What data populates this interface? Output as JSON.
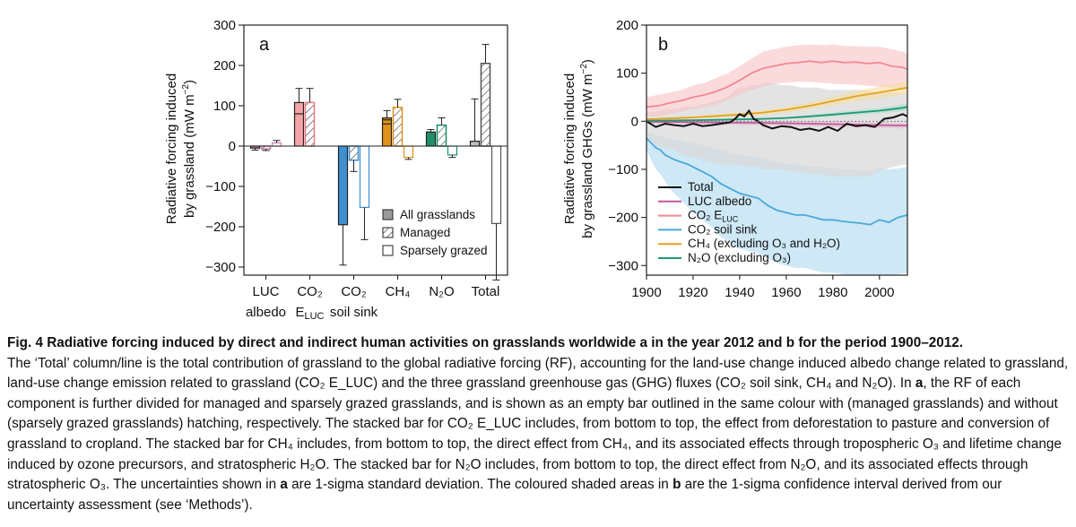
{
  "chart_data": [
    {
      "type": "bar",
      "panel_label": "a",
      "ylabel": "Radiative forcing induced by grassland (mW m⁻²)",
      "ylim": [
        -320,
        300
      ],
      "yticks": [
        -300,
        -200,
        -100,
        0,
        100,
        200,
        300
      ],
      "categories": [
        {
          "line1": "LUC",
          "line2": "albedo"
        },
        {
          "line1": "CO₂",
          "line2": "E_LUC"
        },
        {
          "line1": "CO₂",
          "line2": "soil sink"
        },
        {
          "line1": "CH₄",
          "line2": ""
        },
        {
          "line1": "N₂O",
          "line2": ""
        },
        {
          "line1": "Total",
          "line2": ""
        }
      ],
      "colors": [
        "#c77aa4",
        "#ef7b80",
        "#3f90d0",
        "#e0921a",
        "#1e8f6a",
        "#555555"
      ],
      "series": [
        {
          "name": "All grasslands",
          "values": [
            -5,
            108,
            -195,
            70,
            35,
            12
          ],
          "err": [
            5,
            35,
            100,
            18,
            6,
            105
          ]
        },
        {
          "name": "Managed",
          "values": [
            -7,
            108,
            -35,
            96,
            52,
            205
          ],
          "err": [
            4,
            35,
            28,
            20,
            18,
            47
          ]
        },
        {
          "name": "Sparsely grazed",
          "values": [
            8,
            0,
            -152,
            -28,
            -22,
            -192
          ],
          "err": [
            6,
            0,
            80,
            5,
            6,
            140
          ]
        }
      ],
      "stack_dividers": {
        "CO₂ E_LUC": [
          80
        ],
        "CH₄": [
          55,
          65
        ]
      },
      "legend": [
        "All grasslands",
        "Managed",
        "Sparsely grazed"
      ]
    },
    {
      "type": "line",
      "panel_label": "b",
      "ylabel": "Radiative forcing induced by grassland GHGs (mW m⁻²)",
      "xlim": [
        1900,
        2012
      ],
      "ylim": [
        -320,
        200
      ],
      "xticks": [
        1900,
        1920,
        1940,
        1960,
        1980,
        2000
      ],
      "yticks": [
        -300,
        -200,
        -100,
        0,
        100,
        200
      ],
      "series": [
        {
          "name": "Total",
          "color": "#111111",
          "x": [
            1900,
            1904,
            1908,
            1912,
            1916,
            1920,
            1924,
            1928,
            1932,
            1936,
            1938,
            1940,
            1942,
            1944,
            1946,
            1948,
            1950,
            1954,
            1958,
            1962,
            1966,
            1970,
            1974,
            1978,
            1982,
            1986,
            1990,
            1994,
            1998,
            2002,
            2006,
            2010,
            2012
          ],
          "y": [
            0,
            -12,
            -5,
            -8,
            -10,
            -5,
            -10,
            -8,
            -5,
            -2,
            5,
            15,
            10,
            22,
            5,
            0,
            -8,
            -15,
            -10,
            -12,
            -18,
            -15,
            -20,
            -12,
            -20,
            -5,
            -10,
            -8,
            -12,
            5,
            8,
            15,
            10
          ],
          "lo": [
            -30,
            -50,
            -55,
            -60,
            -70,
            -75,
            -80,
            -85,
            -90,
            -90,
            -90,
            -90,
            -95,
            -95,
            -95,
            -95,
            -100,
            -100,
            -100,
            -105,
            -105,
            -110,
            -110,
            -115,
            -115,
            -115,
            -115,
            -115,
            -110,
            -100,
            -95,
            -90,
            -90
          ],
          "hi": [
            20,
            20,
            25,
            25,
            30,
            30,
            35,
            40,
            45,
            55,
            65,
            70,
            70,
            75,
            75,
            75,
            80,
            80,
            75,
            75,
            70,
            70,
            70,
            65,
            65,
            65,
            65,
            65,
            60,
            60,
            60,
            60,
            60
          ]
        },
        {
          "name": "LUC albedo",
          "color": "#c05a9a",
          "x": [
            1900,
            1920,
            1940,
            1960,
            1980,
            2000,
            2012
          ],
          "y": [
            -1,
            -2,
            -3,
            -4,
            -6,
            -8,
            -9
          ],
          "lo": [
            -5,
            -6,
            -8,
            -9,
            -12,
            -14,
            -15
          ],
          "hi": [
            2,
            2,
            1,
            0,
            0,
            -2,
            -3
          ]
        },
        {
          "name": "CO₂ E_LUC",
          "color": "#f08a90",
          "x": [
            1900,
            1905,
            1910,
            1915,
            1920,
            1925,
            1930,
            1935,
            1940,
            1945,
            1950,
            1955,
            1960,
            1965,
            1970,
            1975,
            1980,
            1985,
            1990,
            1995,
            2000,
            2005,
            2010,
            2012
          ],
          "y": [
            30,
            32,
            38,
            43,
            50,
            55,
            62,
            72,
            85,
            100,
            110,
            115,
            120,
            122,
            125,
            122,
            125,
            122,
            123,
            120,
            122,
            115,
            112,
            108
          ],
          "lo": [
            10,
            10,
            15,
            20,
            25,
            30,
            35,
            45,
            55,
            65,
            72,
            78,
            80,
            82,
            82,
            80,
            78,
            77,
            76,
            74,
            72,
            70,
            68,
            66
          ],
          "hi": [
            50,
            55,
            60,
            65,
            75,
            80,
            90,
            100,
            115,
            130,
            145,
            150,
            155,
            158,
            160,
            158,
            160,
            157,
            156,
            155,
            155,
            150,
            145,
            140
          ]
        },
        {
          "name": "CO₂ soil sink",
          "color": "#4aa8d8",
          "x": [
            1900,
            1902,
            1904,
            1906,
            1908,
            1910,
            1912,
            1915,
            1918,
            1920,
            1924,
            1928,
            1932,
            1936,
            1940,
            1944,
            1948,
            1952,
            1956,
            1960,
            1964,
            1968,
            1972,
            1976,
            1980,
            1984,
            1988,
            1992,
            1996,
            1998,
            2000,
            2004,
            2008,
            2012
          ],
          "y": [
            -35,
            -45,
            -55,
            -60,
            -70,
            -75,
            -80,
            -85,
            -90,
            -95,
            -105,
            -115,
            -130,
            -140,
            -150,
            -155,
            -160,
            -175,
            -185,
            -190,
            -195,
            -195,
            -200,
            -205,
            -205,
            -208,
            -210,
            -212,
            -215,
            -210,
            -205,
            -210,
            -200,
            -195
          ],
          "lo": [
            -60,
            -80,
            -100,
            -110,
            -125,
            -140,
            -150,
            -165,
            -180,
            -190,
            -205,
            -220,
            -240,
            -255,
            -265,
            -270,
            -275,
            -285,
            -295,
            -300,
            -305,
            -305,
            -310,
            -315,
            -315,
            -318,
            -320,
            -320,
            -320,
            -320,
            -320,
            -320,
            -318,
            -315
          ],
          "hi": [
            -20,
            -25,
            -30,
            -30,
            -35,
            -35,
            -40,
            -40,
            -45,
            -45,
            -50,
            -55,
            -60,
            -65,
            -70,
            -72,
            -75,
            -80,
            -85,
            -88,
            -90,
            -92,
            -95,
            -95,
            -98,
            -100,
            -100,
            -102,
            -102,
            -100,
            -98,
            -100,
            -98,
            -95
          ]
        },
        {
          "name": "CH₄ (excluding O₃ and H₂O)",
          "color": "#e2a21e",
          "x": [
            1900,
            1920,
            1940,
            1950,
            1960,
            1970,
            1980,
            1990,
            2000,
            2010,
            2012
          ],
          "y": [
            4,
            8,
            14,
            18,
            24,
            32,
            42,
            52,
            60,
            68,
            70
          ],
          "lo": [
            2,
            5,
            10,
            13,
            18,
            25,
            33,
            41,
            48,
            55,
            57
          ],
          "hi": [
            6,
            11,
            18,
            23,
            30,
            39,
            51,
            63,
            72,
            81,
            83
          ]
        },
        {
          "name": "N₂O (excluding O₃)",
          "color": "#1a9a74",
          "x": [
            1900,
            1920,
            1940,
            1950,
            1960,
            1970,
            1980,
            1990,
            2000,
            2010,
            2012
          ],
          "y": [
            1,
            2,
            4,
            5,
            7,
            10,
            14,
            18,
            22,
            28,
            30
          ],
          "lo": [
            0,
            1,
            2,
            3,
            5,
            7,
            10,
            13,
            17,
            21,
            23
          ],
          "hi": [
            2,
            3,
            6,
            7,
            9,
            13,
            18,
            23,
            27,
            35,
            37
          ]
        }
      ],
      "legend": [
        "Total",
        "LUC albedo",
        "CO₂ E_LUC",
        "CO₂ soil sink",
        "CH₄ (excluding O₃ and H₂O)",
        "N₂O (excluding O₃)"
      ]
    }
  ],
  "caption": {
    "title": "Fig. 4 Radiative forcing induced by direct and indirect human activities on grasslands worldwide a in the year 2012 and b for the period 1900–2012.",
    "paragraph_1": "The ‘Total’ column/line is the total contribution of grassland to the global radiative forcing (RF), accounting for the land-use change induced albedo change related to grassland, land-use change emission related to grassland (CO₂ E_LUC) and the three grassland greenhouse gas (GHG) fluxes (CO₂ soil sink, CH₄ and N₂O).",
    "bold_a_1": "a",
    "paragraph_2": "the RF of each component is further divided for managed and sparsely grazed grasslands, and is shown as an empty bar outlined in the same colour with (managed grasslands) and without (sparsely grazed grasslands) hatching, respectively. The stacked bar for CO₂ E_LUC includes, from bottom to top, the effect from deforestation to pasture and conversion of grassland to cropland. The stacked bar for CH₄ includes, from bottom to top, the direct effect from CH₄, and its associated effects through tropospheric O₃ and lifetime change induced by ozone precursors, and stratospheric H₂O. The stacked bar for N₂O includes, from bottom to top, the direct effect from N₂O, and its associated effects through stratospheric O₃. The uncertainties shown in",
    "bold_a_2": "a",
    "paragraph_3": "are 1-sigma standard deviation. The coloured shaded areas in",
    "bold_b": "b",
    "paragraph_4": "are the 1-sigma confidence interval derived from our uncertainty assessment (see ‘Methods’)."
  }
}
